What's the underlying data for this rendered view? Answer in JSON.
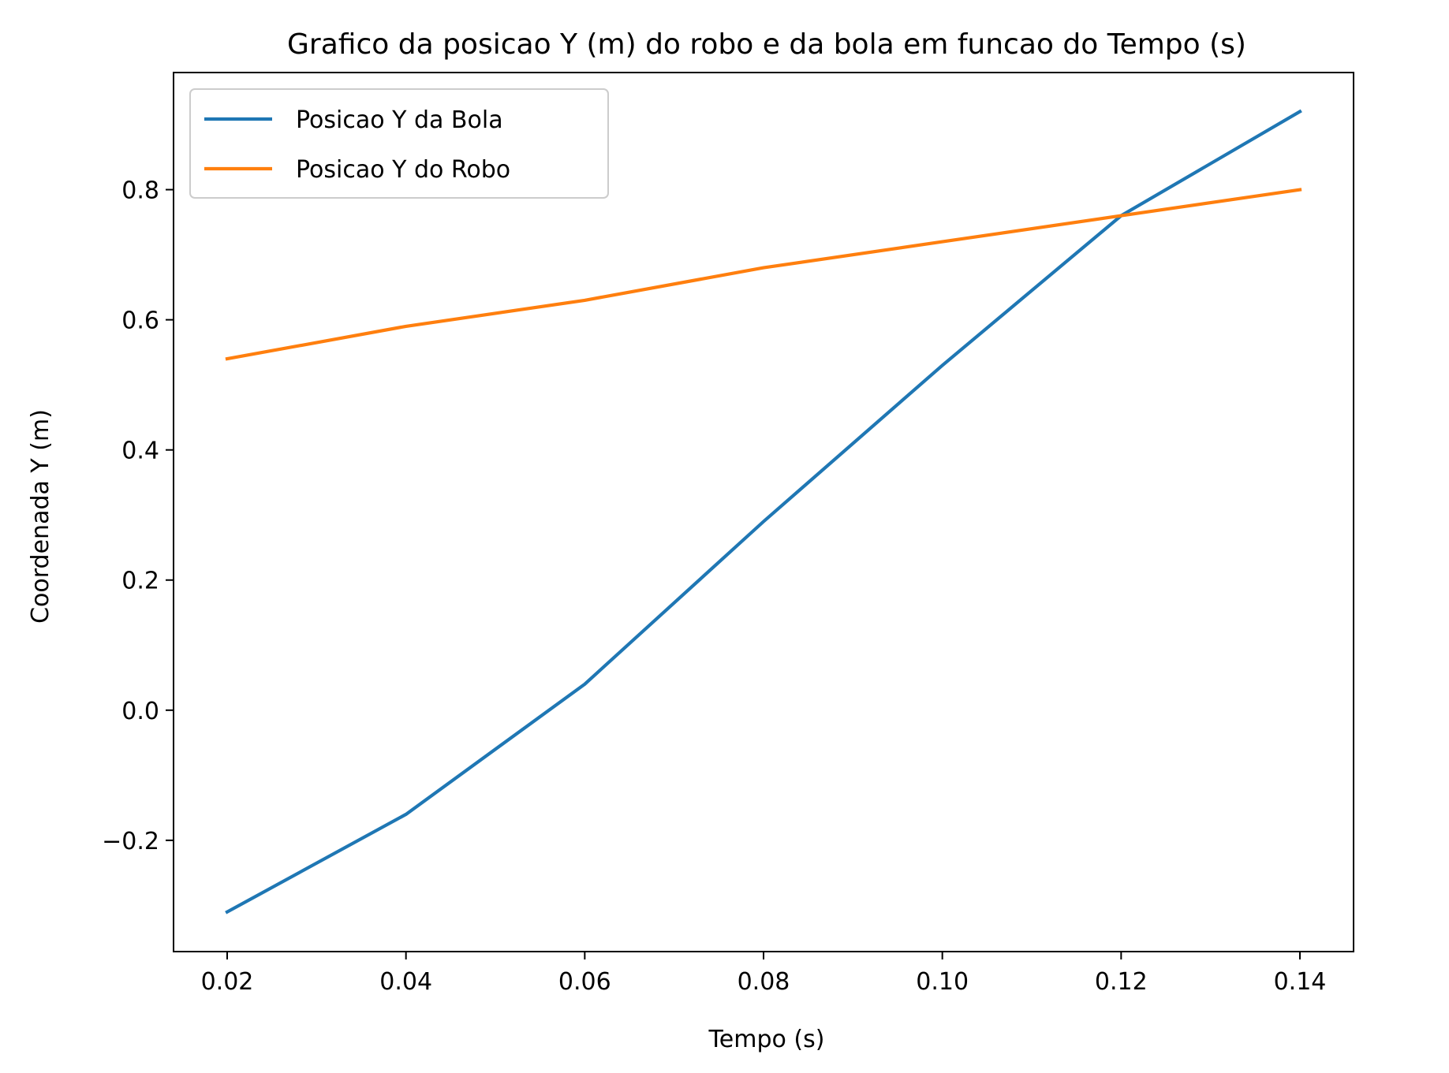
{
  "chart_data": {
    "type": "line",
    "title": "Grafico da posicao Y (m) do robo e da bola em funcao do Tempo (s)",
    "xlabel": "Tempo (s)",
    "ylabel": "Coordenada Y (m)",
    "x": [
      0.02,
      0.04,
      0.06,
      0.08,
      0.1,
      0.12,
      0.14
    ],
    "series": [
      {
        "name": "Posicao Y da Bola",
        "color": "#1f77b4",
        "values": [
          -0.31,
          -0.16,
          0.04,
          0.29,
          0.53,
          0.76,
          0.92
        ]
      },
      {
        "name": "Posicao Y do Robo",
        "color": "#ff7f0e",
        "values": [
          0.54,
          0.59,
          0.63,
          0.68,
          0.72,
          0.76,
          0.8
        ]
      }
    ],
    "xlim": [
      0.014,
      0.146
    ],
    "ylim": [
      -0.371,
      0.98
    ],
    "xticks": [
      "0.02",
      "0.04",
      "0.06",
      "0.08",
      "0.10",
      "0.12",
      "0.14"
    ],
    "xtick_values": [
      0.02,
      0.04,
      0.06,
      0.08,
      0.1,
      0.12,
      0.14
    ],
    "yticks": [
      "−0.2",
      "0.0",
      "0.2",
      "0.4",
      "0.6",
      "0.8"
    ],
    "ytick_values": [
      -0.2,
      0.0,
      0.2,
      0.4,
      0.6,
      0.8
    ],
    "grid": false,
    "legend_position": "upper-left"
  }
}
